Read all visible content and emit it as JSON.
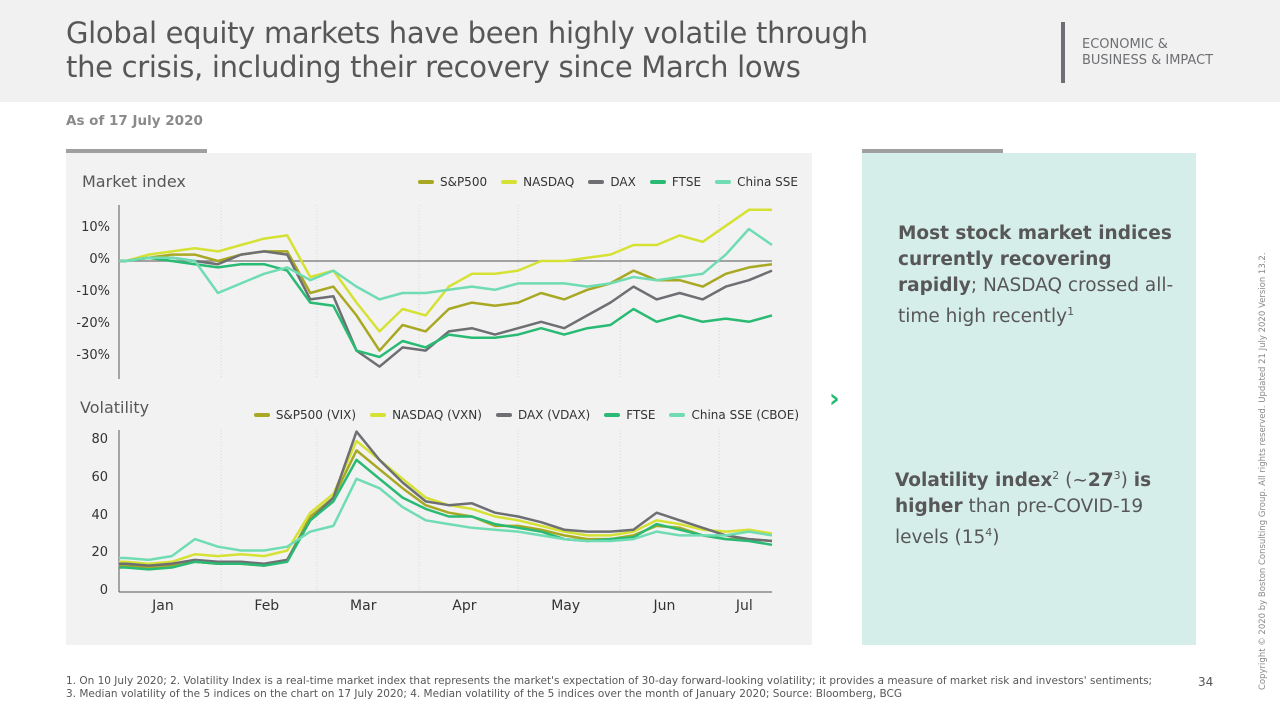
{
  "header": {
    "title": "Global equity markets have been highly volatile through the crisis, including their recovery since March lows",
    "section_line1": "ECONOMIC &",
    "section_line2": "BUSINESS & IMPACT"
  },
  "as_of": "As of 17 July 2020",
  "chart_data": [
    {
      "type": "line",
      "title": "Market index",
      "dates": [
        "2020-01-03",
        "2020-01-10",
        "2020-01-17",
        "2020-01-24",
        "2020-01-31",
        "2020-02-07",
        "2020-02-14",
        "2020-02-21",
        "2020-02-28",
        "2020-03-06",
        "2020-03-13",
        "2020-03-20",
        "2020-03-27",
        "2020-04-03",
        "2020-04-10",
        "2020-04-17",
        "2020-04-24",
        "2020-05-01",
        "2020-05-08",
        "2020-05-15",
        "2020-05-22",
        "2020-05-29",
        "2020-06-05",
        "2020-06-12",
        "2020-06-19",
        "2020-06-26",
        "2020-07-03",
        "2020-07-10",
        "2020-07-17"
      ],
      "x_tick_labels": [
        "Jan",
        "Feb",
        "Mar",
        "Apr",
        "May",
        "Jun",
        "Jul"
      ],
      "y_tick_labels": [
        "10%",
        "0%",
        "-10%",
        "-20%",
        "-30%"
      ],
      "ylim": [
        -37,
        18
      ],
      "y_unit": "%",
      "legend": "top-right",
      "series": [
        {
          "name": "S&P500",
          "color": "#a8a823",
          "values": [
            0,
            1,
            2,
            2,
            0,
            2,
            3,
            3,
            -10,
            -8,
            -17,
            -28,
            -20,
            -22,
            -15,
            -13,
            -14,
            -13,
            -10,
            -12,
            -9,
            -7,
            -3,
            -6,
            -6,
            -8,
            -4,
            -2,
            -1
          ]
        },
        {
          "name": "NASDAQ",
          "color": "#d5e234",
          "values": [
            0,
            2,
            3,
            4,
            3,
            5,
            7,
            8,
            -5,
            -3,
            -13,
            -22,
            -15,
            -17,
            -8,
            -4,
            -4,
            -3,
            0,
            0,
            1,
            2,
            5,
            5,
            8,
            6,
            11,
            16,
            16
          ]
        },
        {
          "name": "DAX",
          "color": "#6e6f73",
          "values": [
            0,
            1,
            1,
            0,
            -1,
            2,
            3,
            2,
            -12,
            -11,
            -28,
            -33,
            -27,
            -28,
            -22,
            -21,
            -23,
            -21,
            -19,
            -21,
            -17,
            -13,
            -8,
            -12,
            -10,
            -12,
            -8,
            -6,
            -3
          ]
        },
        {
          "name": "FTSE",
          "color": "#29ba74",
          "values": [
            0,
            1,
            0,
            -1,
            -2,
            -1,
            -1,
            -3,
            -13,
            -14,
            -28,
            -30,
            -25,
            -27,
            -23,
            -24,
            -24,
            -23,
            -21,
            -23,
            -21,
            -20,
            -15,
            -19,
            -17,
            -19,
            -18,
            -19,
            -17
          ]
        },
        {
          "name": "China SSE",
          "color": "#70dcb3",
          "values": [
            0,
            1,
            1,
            0,
            -10,
            -7,
            -4,
            -2,
            -6,
            -3,
            -8,
            -12,
            -10,
            -10,
            -9,
            -8,
            -9,
            -7,
            -7,
            -7,
            -8,
            -7,
            -5,
            -6,
            -5,
            -4,
            2,
            10,
            5
          ]
        }
      ]
    },
    {
      "type": "line",
      "title": "Volatility",
      "x_tick_labels": [
        "Jan",
        "Feb",
        "Mar",
        "Apr",
        "May",
        "Jun",
        "Jul"
      ],
      "y_tick_labels": [
        "80",
        "60",
        "40",
        "20",
        "0"
      ],
      "ylim": [
        0,
        85
      ],
      "legend": "top-right",
      "series": [
        {
          "name": "S&P500 (VIX)",
          "color": "#a8a823",
          "values": [
            14,
            13,
            14,
            16,
            15,
            15,
            14,
            17,
            40,
            50,
            75,
            65,
            55,
            46,
            42,
            40,
            35,
            35,
            33,
            30,
            28,
            28,
            30,
            35,
            34,
            30,
            28,
            28,
            27
          ]
        },
        {
          "name": "NASDAQ (VXN)",
          "color": "#d5e234",
          "values": [
            16,
            15,
            16,
            20,
            19,
            20,
            19,
            22,
            42,
            52,
            80,
            70,
            60,
            50,
            46,
            44,
            40,
            38,
            35,
            32,
            30,
            30,
            32,
            38,
            36,
            33,
            32,
            33,
            31
          ]
        },
        {
          "name": "DAX (VDAX)",
          "color": "#6e6f73",
          "values": [
            15,
            14,
            15,
            17,
            16,
            16,
            15,
            17,
            38,
            50,
            85,
            70,
            58,
            48,
            46,
            47,
            42,
            40,
            37,
            33,
            32,
            32,
            33,
            42,
            38,
            34,
            30,
            28,
            27
          ]
        },
        {
          "name": "FTSE",
          "color": "#29ba74",
          "values": [
            13,
            12,
            13,
            16,
            15,
            15,
            14,
            16,
            38,
            48,
            70,
            60,
            50,
            44,
            40,
            40,
            36,
            34,
            32,
            28,
            27,
            28,
            29,
            36,
            33,
            30,
            28,
            27,
            25
          ]
        },
        {
          "name": "China SSE (CBOE)",
          "color": "#70dcb3",
          "values": [
            18,
            17,
            19,
            28,
            24,
            22,
            22,
            24,
            32,
            35,
            60,
            55,
            45,
            38,
            36,
            34,
            33,
            32,
            30,
            28,
            27,
            27,
            28,
            32,
            30,
            30,
            30,
            32,
            30
          ]
        }
      ]
    }
  ],
  "insights": {
    "first_bold": "Most stock market indices currently recovering rapidly",
    "first_rest": "; NASDAQ crossed all-time high recently",
    "first_sup": "1",
    "second_bold_a": "Volatility index",
    "sup2": "2",
    "paren_open": " (~",
    "bold_27": "27",
    "sup3": "3",
    "paren_close": ") ",
    "bold_is_higher": "is higher",
    "rest": " than pre-COVID-19 levels (15",
    "sup4": "4",
    "end": ")"
  },
  "footnotes": {
    "line1": "1. On 10 July 2020; 2. Volatility Index is a real-time market index that represents the market's expectation of 30-day forward-looking volatility; it provides a measure of market risk and investors' sentiments;",
    "line2": "3. Median volatility of the 5 indices on the chart on 17 July 2020;  4. Median volatility of the 5 indices over the month of January 2020;  Source: Bloomberg, BCG"
  },
  "page_number": "34",
  "copyright": "Copyright © 2020 by Boston Consulting Group. All rights reserved. Updated 21 July 2020 Version 13.2.",
  "colors": {
    "accent": "#29ba74",
    "panel": "#d5eee9"
  },
  "icons": {
    "next": "chevron-right-icon"
  }
}
